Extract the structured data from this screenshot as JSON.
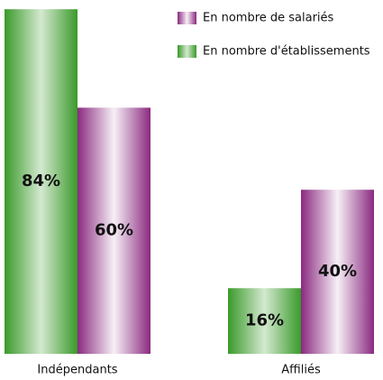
{
  "chart_data": {
    "type": "bar",
    "categories": [
      "Indépendants",
      "Affiliés"
    ],
    "series": [
      {
        "name": "En nombre d'établissements",
        "color": "#3a9a2a",
        "values": [
          84,
          16
        ],
        "value_labels": [
          "84%",
          "16%"
        ]
      },
      {
        "name": "En nombre de salariés",
        "color": "#8a2a80",
        "values": [
          60,
          40
        ],
        "value_labels": [
          "60%",
          "40%"
        ]
      }
    ],
    "legend_order": [
      1,
      0
    ]
  }
}
